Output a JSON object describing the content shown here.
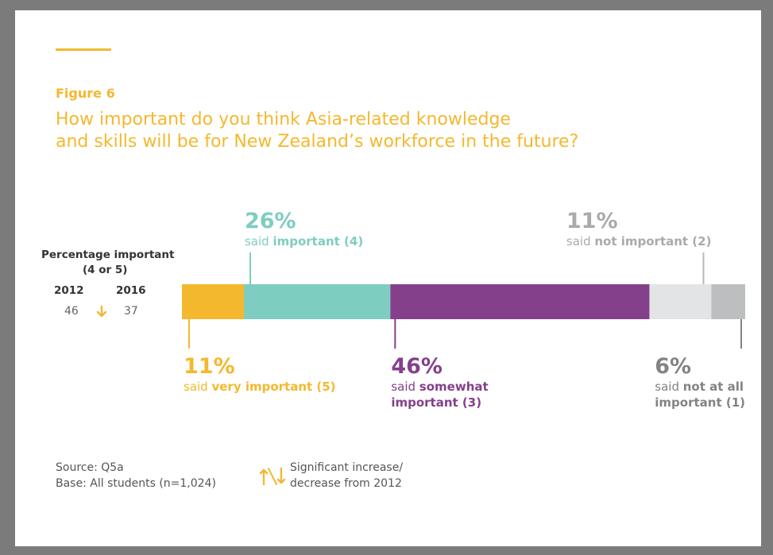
{
  "figure_label": "Figure 6",
  "title_line1": "How important do you think Asia-related knowledge",
  "title_line2": "and skills will be for New Zealand’s workforce in the future?",
  "pct_important": {
    "line1": "Percentage important",
    "line2": "(4 or 5)",
    "year_a": "2012",
    "year_b": "2016",
    "value_a": "46",
    "value_b": "37",
    "change_icon": "arrow-down-icon"
  },
  "chart_data": {
    "type": "bar",
    "orientation": "horizontal-stacked",
    "categories": [
      "very important (5)",
      "important (4)",
      "somewhat important (3)",
      "not important (2)",
      "not at all important (1)"
    ],
    "values": [
      11,
      26,
      46,
      11,
      6
    ],
    "colors": [
      "#f4b82e",
      "#7ecdc1",
      "#85408b",
      "#e3e4e6",
      "#bdbec0"
    ],
    "labels": [
      {
        "pct": "11%",
        "pre": "said ",
        "bold": "very important (5)",
        "color": "#f4b82e",
        "label_color": "#f4b82e",
        "position": "below"
      },
      {
        "pct": "26%",
        "pre": "said ",
        "bold": "important (4)",
        "color": "#7ecdc1",
        "label_color": "#7ecdc1",
        "position": "above"
      },
      {
        "pct": "46%",
        "pre": "said ",
        "bold": "somewhat important (3)",
        "bold_line1": "somewhat",
        "bold_line2": "important (3)",
        "color": "#85408b",
        "label_color": "#85408b",
        "position": "below"
      },
      {
        "pct": "11%",
        "pre": "said ",
        "bold": "not important (2)",
        "color": "#b7b8bb",
        "label_color": "#a9aaad",
        "position": "above"
      },
      {
        "pct": "6%",
        "pre": "said ",
        "bold": "not at all important (1)",
        "bold_line1": "not at all",
        "bold_line2": "important (1)",
        "color": "#828385",
        "label_color": "#828385",
        "position": "below"
      }
    ]
  },
  "footer": {
    "source": "Source: Q5a",
    "base": "Base: All students (n=1,024)",
    "legend_icon": "up-down-arrows-icon",
    "legend_line1": "Significant increase/",
    "legend_line2": "decrease from 2012"
  }
}
